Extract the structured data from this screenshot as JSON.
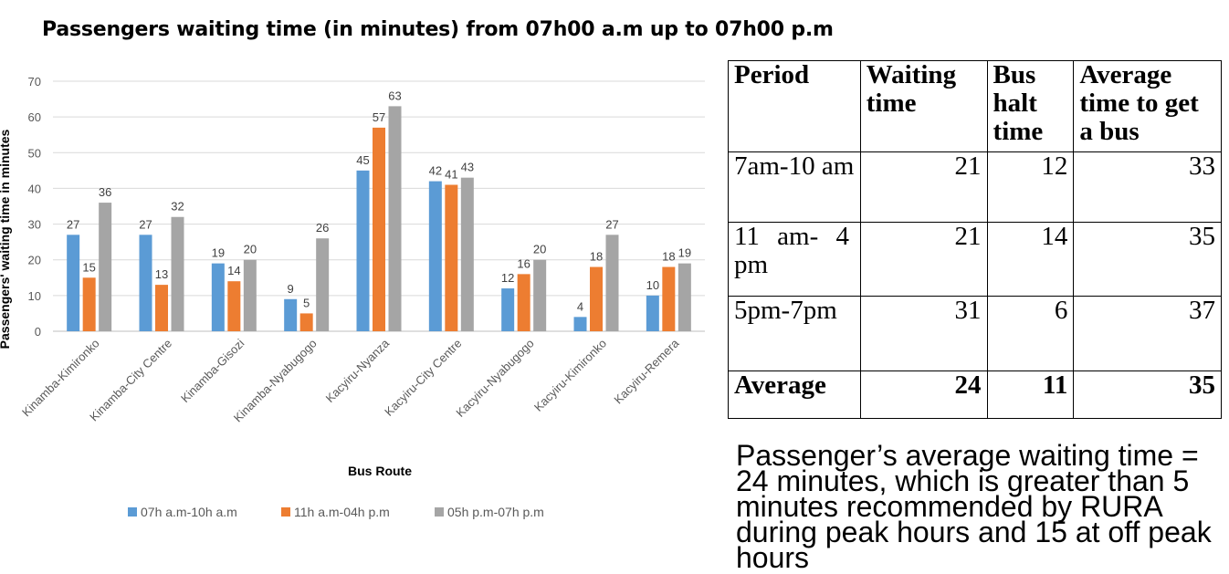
{
  "chart_data": {
    "type": "bar",
    "title": "Passengers waiting time (in minutes) from 07h00 a.m up to 07h00 p.m",
    "xlabel": "Bus Route",
    "ylabel": "Passengers' waiting time in minutes",
    "ylim": [
      0,
      70
    ],
    "yticks": [
      0,
      10,
      20,
      30,
      40,
      50,
      60,
      70
    ],
    "grid": true,
    "legend_position": "bottom",
    "categories": [
      "Kinamba-Kimironko",
      "Kinamba-City Centre",
      "Kinamba-Gisozi",
      "Kinamba-Nyabugogo",
      "Kacyiru-Nyanza",
      "Kacyiru-City Centre",
      "Kacyiru-Nyabugogo",
      "Kacyiru-Kimironko",
      "Kacyiru-Remera"
    ],
    "series": [
      {
        "name": "07h a.m-10h a.m",
        "color": "#5B9BD5",
        "values": [
          27,
          27,
          19,
          9,
          45,
          42,
          12,
          4,
          10
        ]
      },
      {
        "name": "11h a.m-04h p.m",
        "color": "#ED7D31",
        "values": [
          15,
          13,
          14,
          5,
          57,
          41,
          16,
          18,
          18
        ]
      },
      {
        "name": "05h p.m-07h p.m",
        "color": "#A5A5A5",
        "values": [
          36,
          32,
          20,
          26,
          63,
          43,
          20,
          27,
          19
        ]
      }
    ]
  },
  "table": {
    "headers": [
      "Period",
      "Waiting time",
      "Bus halt time",
      "Average time to get a bus"
    ],
    "rows": [
      [
        "7am-10 am",
        "21",
        "12",
        "33"
      ],
      [
        "11 am- 4 pm",
        "21",
        "14",
        "35"
      ],
      [
        "5pm-7pm",
        "31",
        "6",
        "37"
      ]
    ],
    "footer": [
      "Average",
      "24",
      "11",
      "35"
    ]
  },
  "conclusion": "Passenger’s average waiting time = 24 minutes, which is greater than 5 minutes recommended  by RURA during peak hours and 15 at off peak hours"
}
